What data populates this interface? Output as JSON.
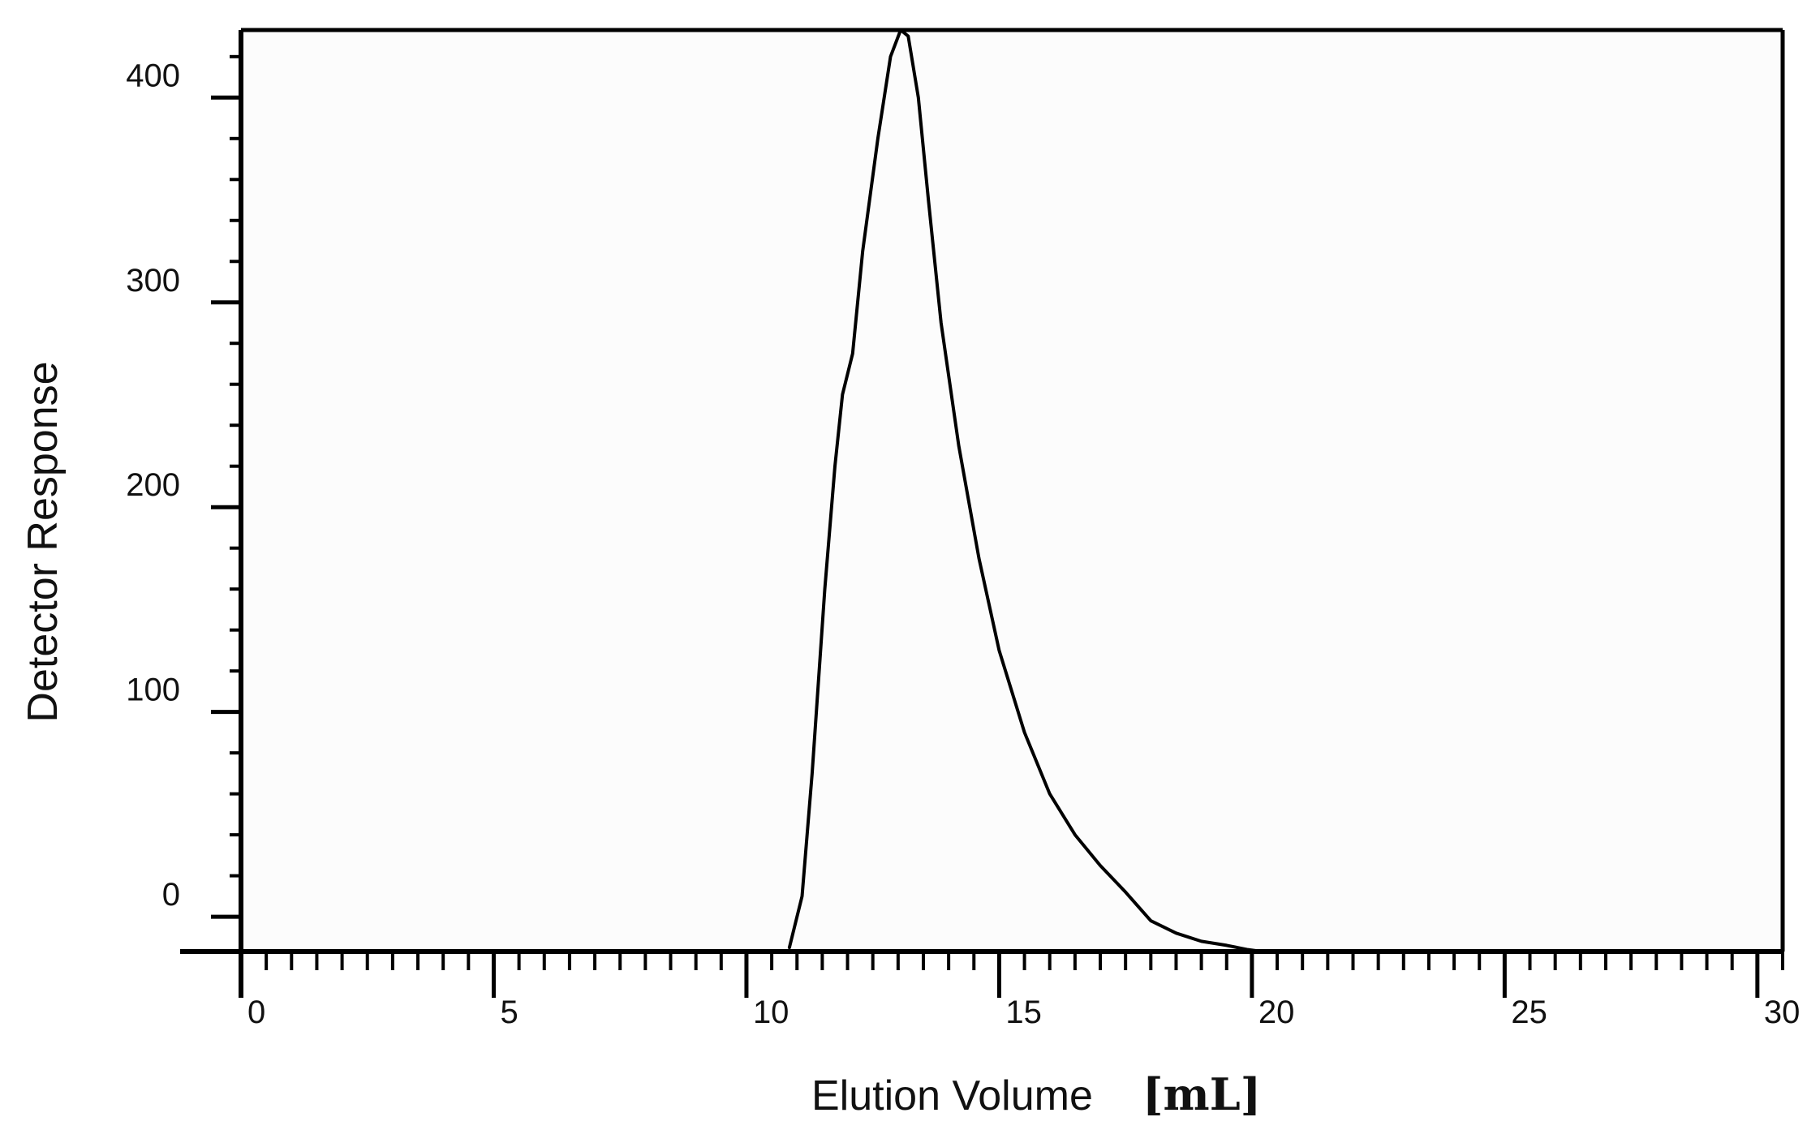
{
  "colors": {
    "background": "#ffffff",
    "plot_background": "#fcfcfc",
    "line": "#000000",
    "text": "#111111"
  },
  "chart_data": {
    "type": "line",
    "title": "",
    "xlabel": "Elution Volume",
    "xlabel_unit": "[mL]",
    "ylabel": "Detector Response",
    "xlim": [
      0,
      30.5
    ],
    "ylim": [
      -17,
      433
    ],
    "grid": false,
    "legend": "none",
    "x_ticks": [
      0,
      5,
      10,
      15,
      20,
      25,
      30
    ],
    "x_tick_labels": [
      "0",
      "5",
      "10",
      "15",
      "20",
      "25",
      "30"
    ],
    "y_ticks": [
      0,
      100,
      200,
      300,
      400
    ],
    "y_tick_labels": [
      "0",
      "100",
      "200",
      "300",
      "400"
    ],
    "series": [
      {
        "x": [
          10.85,
          11.1,
          11.3,
          11.55,
          11.75,
          11.9,
          12.1,
          12.3,
          12.6,
          12.85,
          13.05,
          13.2,
          13.4,
          13.6,
          13.85,
          14.2,
          14.6,
          15.0,
          15.5,
          16.0,
          16.5,
          17.0,
          17.5,
          18.0,
          18.5,
          19.0,
          19.5,
          19.9,
          20.2
        ],
        "y": [
          -15,
          10,
          70,
          160,
          220,
          255,
          275,
          325,
          380,
          420,
          433,
          430,
          400,
          350,
          290,
          230,
          175,
          130,
          90,
          60,
          40,
          25,
          12,
          -2,
          -8,
          -12,
          -14,
          -16,
          -17
        ]
      }
    ]
  }
}
